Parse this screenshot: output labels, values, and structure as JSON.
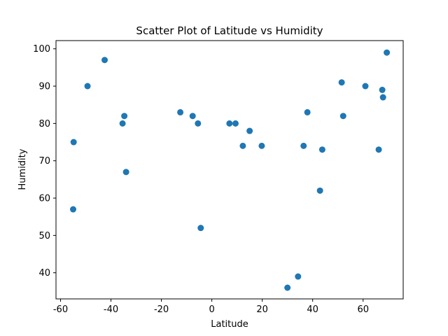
{
  "chart_data": {
    "type": "scatter",
    "title": "Scatter Plot of Latitude vs Humidity",
    "xlabel": "Latitude",
    "ylabel": "Humidity",
    "xlim": [
      -61.8,
      75.9
    ],
    "ylim": [
      33.0,
      102.2
    ],
    "xticks": [
      -60,
      -40,
      -20,
      0,
      20,
      40,
      60
    ],
    "yticks": [
      40,
      50,
      60,
      70,
      80,
      90,
      100
    ],
    "grid": false,
    "marker_color": "#1f77b4",
    "points": [
      {
        "x": -54.8,
        "y": 75
      },
      {
        "x": -55.0,
        "y": 57
      },
      {
        "x": -49.3,
        "y": 90
      },
      {
        "x": -42.5,
        "y": 97
      },
      {
        "x": -35.4,
        "y": 80
      },
      {
        "x": -34.7,
        "y": 82
      },
      {
        "x": -34.0,
        "y": 67
      },
      {
        "x": -12.5,
        "y": 83
      },
      {
        "x": -7.6,
        "y": 82
      },
      {
        "x": -5.5,
        "y": 80
      },
      {
        "x": -4.4,
        "y": 52
      },
      {
        "x": 7.0,
        "y": 80
      },
      {
        "x": 9.4,
        "y": 80
      },
      {
        "x": 12.3,
        "y": 74
      },
      {
        "x": 15.0,
        "y": 78
      },
      {
        "x": 19.8,
        "y": 74
      },
      {
        "x": 30.0,
        "y": 36
      },
      {
        "x": 34.2,
        "y": 39
      },
      {
        "x": 36.4,
        "y": 74
      },
      {
        "x": 37.9,
        "y": 83
      },
      {
        "x": 42.9,
        "y": 62
      },
      {
        "x": 43.8,
        "y": 73
      },
      {
        "x": 51.5,
        "y": 91
      },
      {
        "x": 52.1,
        "y": 82
      },
      {
        "x": 60.9,
        "y": 90
      },
      {
        "x": 66.2,
        "y": 73
      },
      {
        "x": 67.6,
        "y": 89
      },
      {
        "x": 67.9,
        "y": 87
      },
      {
        "x": 69.4,
        "y": 99
      }
    ]
  }
}
